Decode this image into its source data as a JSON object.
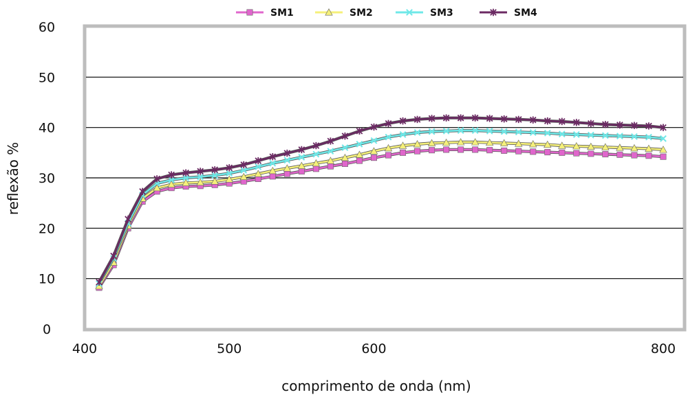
{
  "chart_data": {
    "type": "line",
    "xlabel": "comprimento de onda (nm)",
    "ylabel": "reflexão %",
    "xlim": [
      400,
      810
    ],
    "ylim": [
      0,
      60
    ],
    "x_ticks": [
      400,
      500,
      600,
      800
    ],
    "y_ticks": [
      0,
      10,
      20,
      30,
      40,
      50,
      60
    ],
    "grid": "horizontal",
    "legend_position": "top",
    "plot_background": "#ffffff",
    "plot_border_color": "#bdbdbd",
    "x": [
      410,
      420,
      430,
      440,
      450,
      460,
      470,
      480,
      490,
      500,
      510,
      520,
      530,
      540,
      550,
      560,
      570,
      580,
      590,
      600,
      610,
      620,
      630,
      640,
      650,
      660,
      670,
      680,
      690,
      700,
      710,
      720,
      730,
      740,
      750,
      760,
      770,
      780,
      790,
      800
    ],
    "series": [
      {
        "name": "SM1",
        "color": "#e066cc",
        "marker": "square",
        "values": [
          8.2,
          12.7,
          20,
          25.3,
          27.3,
          28,
          28.3,
          28.4,
          28.6,
          28.9,
          29.3,
          29.8,
          30.3,
          30.8,
          31.3,
          31.8,
          32.3,
          32.8,
          33.4,
          34,
          34.5,
          35,
          35.3,
          35.5,
          35.6,
          35.6,
          35.6,
          35.5,
          35.4,
          35.3,
          35.2,
          35.1,
          35.0,
          34.9,
          34.8,
          34.7,
          34.6,
          34.5,
          34.4,
          34.2
        ]
      },
      {
        "name": "SM2",
        "color": "#f5f07a",
        "marker": "triangle",
        "values": [
          8.5,
          13.2,
          20.5,
          25.9,
          28,
          28.7,
          29,
          29.1,
          29.3,
          29.7,
          30.2,
          30.8,
          31.4,
          31.9,
          32.4,
          32.9,
          33.4,
          34,
          34.6,
          35.3,
          35.9,
          36.4,
          36.7,
          36.9,
          37,
          37.1,
          37.1,
          37,
          36.9,
          36.8,
          36.7,
          36.6,
          36.4,
          36.3,
          36.2,
          36.1,
          36.0,
          35.9,
          35.8,
          35.6
        ]
      },
      {
        "name": "SM3",
        "color": "#6fe8e8",
        "marker": "x",
        "values": [
          9,
          14,
          21,
          26.6,
          28.9,
          29.6,
          30,
          30.2,
          30.5,
          30.9,
          31.5,
          32.2,
          32.9,
          33.5,
          34.1,
          34.7,
          35.3,
          36,
          36.7,
          37.4,
          38.1,
          38.6,
          39,
          39.2,
          39.3,
          39.4,
          39.4,
          39.3,
          39.2,
          39.1,
          39.0,
          38.9,
          38.7,
          38.6,
          38.5,
          38.4,
          38.3,
          38.2,
          38.1,
          37.8
        ]
      },
      {
        "name": "SM4",
        "color": "#6b2a63",
        "marker": "star",
        "values": [
          9.3,
          14.5,
          21.8,
          27.3,
          29.8,
          30.6,
          31,
          31.3,
          31.6,
          32,
          32.6,
          33.4,
          34.2,
          34.9,
          35.6,
          36.4,
          37.3,
          38.3,
          39.3,
          40.1,
          40.8,
          41.3,
          41.6,
          41.8,
          41.9,
          41.9,
          41.9,
          41.8,
          41.7,
          41.6,
          41.5,
          41.3,
          41.2,
          41.0,
          40.8,
          40.6,
          40.5,
          40.4,
          40.3,
          40.0
        ]
      }
    ]
  }
}
